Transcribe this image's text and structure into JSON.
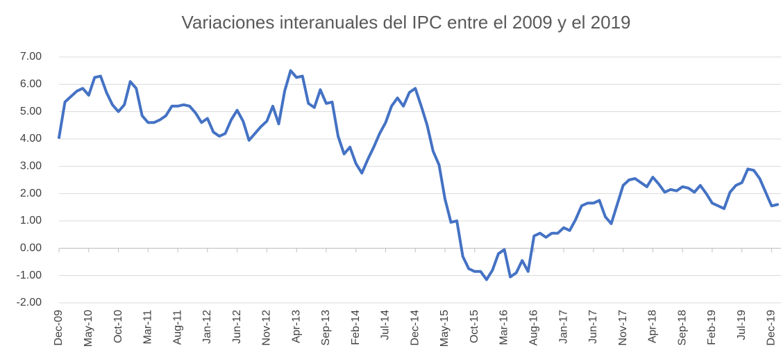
{
  "chart_data": {
    "type": "line",
    "title": "Variaciones interanuales del IPC entre el 2009 y el 2019",
    "categories": [
      "Dec-09",
      null,
      null,
      null,
      null,
      "May-10",
      null,
      null,
      null,
      null,
      "Oct-10",
      null,
      null,
      null,
      null,
      "Mar-11",
      null,
      null,
      null,
      null,
      "Aug-11",
      null,
      null,
      null,
      null,
      "Jan-12",
      null,
      null,
      null,
      null,
      "Jun-12",
      null,
      null,
      null,
      null,
      "Nov-12",
      null,
      null,
      null,
      null,
      "Apr-13",
      null,
      null,
      null,
      null,
      "Sep-13",
      null,
      null,
      null,
      null,
      "Feb-14",
      null,
      null,
      null,
      null,
      "Jul-14",
      null,
      null,
      null,
      null,
      "Dec-14",
      null,
      null,
      null,
      null,
      "May-15",
      null,
      null,
      null,
      null,
      "Oct-15",
      null,
      null,
      null,
      null,
      "Mar-16",
      null,
      null,
      null,
      null,
      "Aug-16",
      null,
      null,
      null,
      null,
      "Jan-17",
      null,
      null,
      null,
      null,
      "Jun-17",
      null,
      null,
      null,
      null,
      "Nov-17",
      null,
      null,
      null,
      null,
      "Apr-18",
      null,
      null,
      null,
      null,
      "Sep-18",
      null,
      null,
      null,
      null,
      "Feb-19",
      null,
      null,
      null,
      null,
      "Jul-19",
      null,
      null,
      null,
      null,
      "Dec-19",
      null
    ],
    "values": [
      4.05,
      5.35,
      5.55,
      5.75,
      5.85,
      5.6,
      6.25,
      6.3,
      5.7,
      5.25,
      5.0,
      5.25,
      6.1,
      5.85,
      4.85,
      4.6,
      4.6,
      4.7,
      4.85,
      5.2,
      5.2,
      5.25,
      5.2,
      4.95,
      4.6,
      4.75,
      4.25,
      4.1,
      4.2,
      4.7,
      5.05,
      4.65,
      3.95,
      4.2,
      4.45,
      4.65,
      5.2,
      4.55,
      5.75,
      6.5,
      6.25,
      6.3,
      5.3,
      5.15,
      5.8,
      5.3,
      5.35,
      4.1,
      3.45,
      3.7,
      3.1,
      2.75,
      3.25,
      3.7,
      4.2,
      4.6,
      5.2,
      5.5,
      5.2,
      5.7,
      5.85,
      5.2,
      4.5,
      3.55,
      3.05,
      1.8,
      0.95,
      1.0,
      -0.3,
      -0.75,
      -0.85,
      -0.85,
      -1.15,
      -0.8,
      -0.2,
      -0.05,
      -1.05,
      -0.9,
      -0.45,
      -0.85,
      0.45,
      0.55,
      0.4,
      0.55,
      0.55,
      0.75,
      0.65,
      1.05,
      1.55,
      1.65,
      1.65,
      1.75,
      1.15,
      0.9,
      1.6,
      2.3,
      2.5,
      2.55,
      2.4,
      2.25,
      2.6,
      2.35,
      2.05,
      2.15,
      2.1,
      2.25,
      2.2,
      2.05,
      2.3,
      2.0,
      1.65,
      1.55,
      1.45,
      2.05,
      2.3,
      2.4,
      2.9,
      2.85,
      2.55,
      2.05,
      1.55,
      1.6
    ],
    "color": "#4472c4",
    "ylim": [
      -2,
      7
    ],
    "yticks": [
      {
        "value": -2,
        "label": "-2.00"
      },
      {
        "value": -1,
        "label": "-1.00"
      },
      {
        "value": 0,
        "label": "0.00"
      },
      {
        "value": 1,
        "label": "1.00"
      },
      {
        "value": 2,
        "label": "2.00"
      },
      {
        "value": 3,
        "label": "3.00"
      },
      {
        "value": 4,
        "label": "4.00"
      },
      {
        "value": 5,
        "label": "5.00"
      },
      {
        "value": 6,
        "label": "6.00"
      },
      {
        "value": 7,
        "label": "7.00"
      }
    ],
    "grid": true
  }
}
